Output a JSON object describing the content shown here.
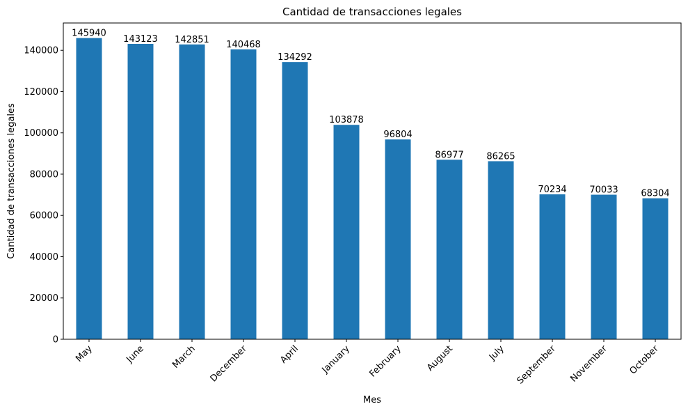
{
  "chart_data": {
    "type": "bar",
    "title": "Cantidad de transacciones legales",
    "xlabel": "Mes",
    "ylabel": "Cantidad de transacciones legales",
    "categories": [
      "May",
      "June",
      "March",
      "December",
      "April",
      "January",
      "February",
      "August",
      "July",
      "September",
      "November",
      "October"
    ],
    "values": [
      145940,
      143123,
      142851,
      140468,
      134292,
      103878,
      96804,
      86977,
      86265,
      70234,
      70033,
      68304
    ],
    "data_labels": [
      "145940",
      "143123",
      "142851",
      "140468",
      "134292",
      "103878",
      "96804",
      "86977",
      "86265",
      "70234",
      "70033",
      "68304"
    ],
    "ylim": [
      0,
      153237
    ],
    "yticks": [
      0,
      20000,
      40000,
      60000,
      80000,
      100000,
      120000,
      140000
    ],
    "ytick_labels": [
      "0",
      "20000",
      "40000",
      "60000",
      "80000",
      "100000",
      "120000",
      "140000"
    ],
    "grid": false,
    "legend": "none",
    "bar_color": "#1f77b4"
  }
}
